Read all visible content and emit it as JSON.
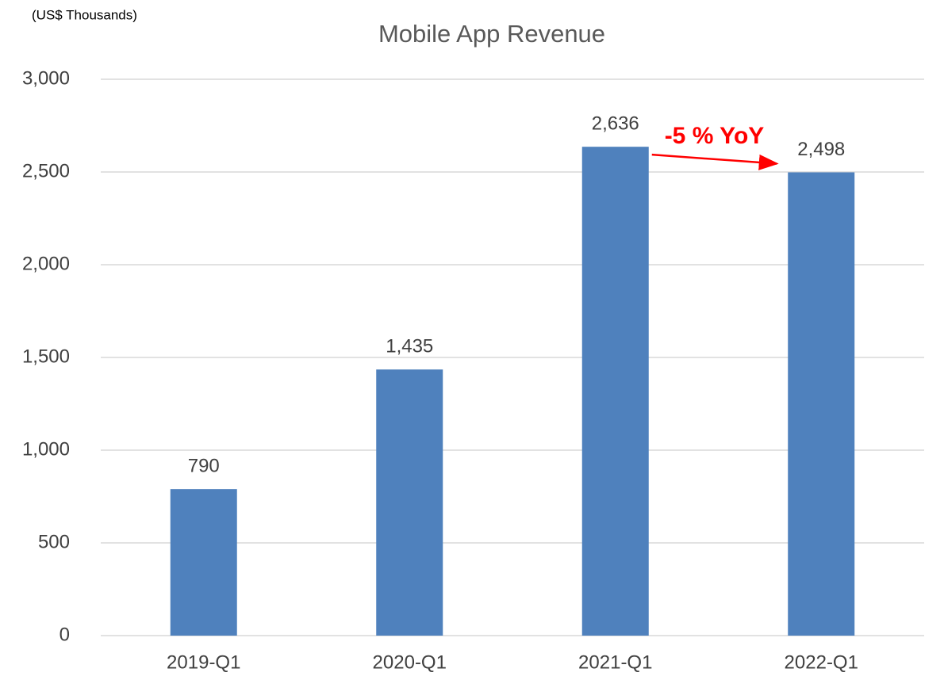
{
  "chart_data": {
    "type": "bar",
    "title": "Mobile App Revenue",
    "y_label": "(US$ Thousands)",
    "categories": [
      "2019-Q1",
      "2020-Q1",
      "2021-Q1",
      "2022-Q1"
    ],
    "values": [
      790,
      1435,
      2636,
      2498
    ],
    "value_labels": [
      "790",
      "1,435",
      "2,636",
      "2,498"
    ],
    "color": "#4f81bd",
    "ylim": [
      0,
      3000
    ],
    "yticks": [
      0,
      500,
      {
        "value": 1000,
        "label": "1,000"
      },
      {
        "value": 1500,
        "label": "1,500"
      },
      {
        "value": 2000,
        "label": "2,000"
      },
      {
        "value": 2500,
        "label": "2,500"
      },
      {
        "value": 3000,
        "label": "3,000"
      }
    ],
    "grid": true,
    "annotation": "-5 % YoY"
  }
}
